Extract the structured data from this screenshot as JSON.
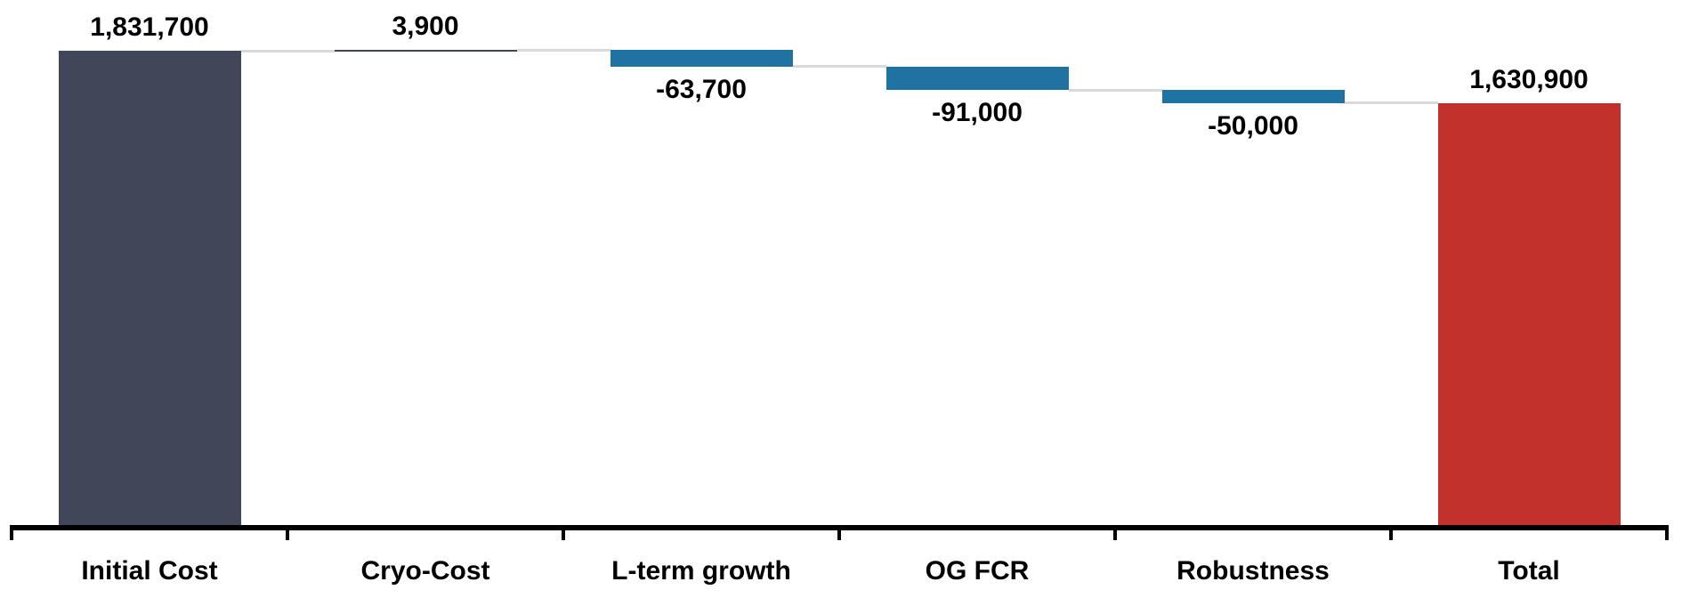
{
  "chart_data": {
    "type": "bar",
    "subtype": "waterfall",
    "title": "",
    "xlabel": "",
    "ylabel": "",
    "grid": false,
    "legend": "none",
    "axis_range": [
      0,
      1835600
    ],
    "categories": [
      "Initial Cost",
      "Cryo-Cost",
      "L-term growth",
      "OG FCR",
      "Robustness",
      "Total"
    ],
    "values": [
      1831700,
      3900,
      -63700,
      -91000,
      -50000,
      1630900
    ],
    "value_labels": [
      "1,831,700",
      "3,900",
      "-63,700",
      "-91,000",
      "-50,000",
      "1,630,900"
    ],
    "roles": [
      "initial",
      "increase",
      "decrease",
      "decrease",
      "decrease",
      "total"
    ],
    "cumulative_levels": [
      1831700,
      1835600,
      1771900,
      1680900,
      1630900,
      1630900
    ],
    "colors": {
      "initial": "#424659",
      "increase": "#3f4450",
      "decrease": "#2072A2",
      "total": "#C2312B",
      "connector": "#D9D9D9",
      "axis": "#000000",
      "label_text": "#000000",
      "background": "#FFFFFF"
    }
  }
}
